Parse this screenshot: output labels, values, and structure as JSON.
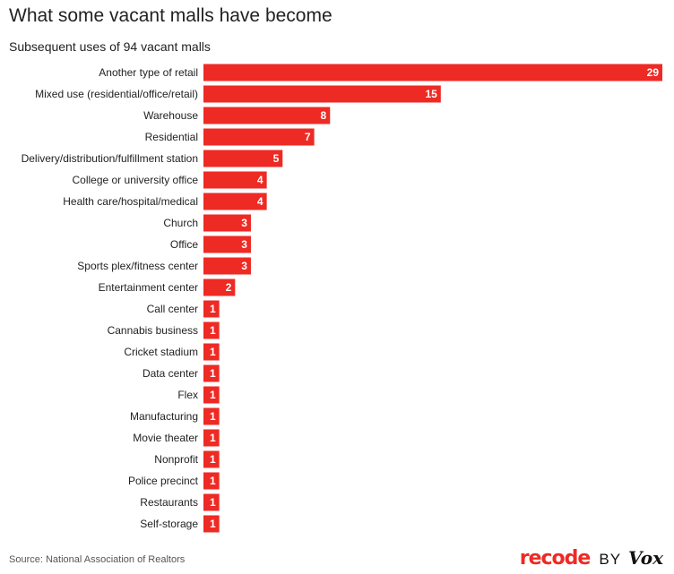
{
  "title": "What some vacant malls have become",
  "subtitle": "Subsequent uses of 94 vacant malls",
  "source": "Source: National Association of Realtors",
  "brand": {
    "recode": "recode",
    "by": "BY",
    "vox": "Vox"
  },
  "colors": {
    "bar": "#ee2a24",
    "bar_label": "#ffffff",
    "text": "#222222",
    "brand_red": "#ee2a24"
  },
  "chart_data": {
    "type": "bar",
    "orientation": "horizontal",
    "categories": [
      "Another type of retail",
      "Mixed use (residential/office/retail)",
      "Warehouse",
      "Residential",
      "Delivery/distribution/fulfillment station",
      "College or university office",
      "Health care/hospital/medical",
      "Church",
      "Office",
      "Sports plex/fitness center",
      "Entertainment center",
      "Call center",
      "Cannabis business",
      "Cricket stadium",
      "Data center",
      "Flex",
      "Manufacturing",
      "Movie theater",
      "Nonprofit",
      "Police precinct",
      "Restaurants",
      "Self-storage"
    ],
    "values": [
      29,
      15,
      8,
      7,
      5,
      4,
      4,
      3,
      3,
      3,
      2,
      1,
      1,
      1,
      1,
      1,
      1,
      1,
      1,
      1,
      1,
      1
    ],
    "title": "What some vacant malls have become",
    "subtitle": "Subsequent uses of 94 vacant malls",
    "xlim": [
      0,
      29
    ],
    "data_labels": true,
    "grid": false,
    "legend": false
  }
}
